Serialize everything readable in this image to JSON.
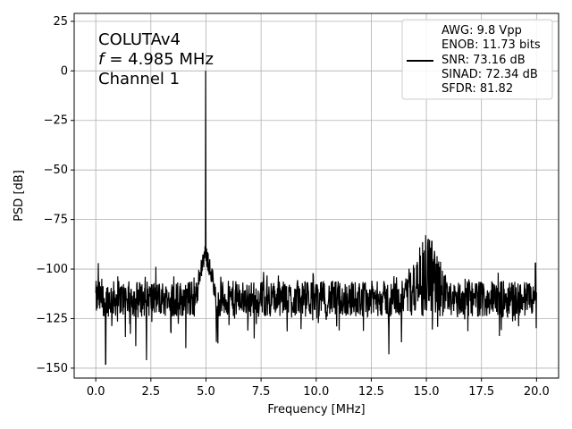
{
  "chart_data": {
    "type": "line",
    "xlabel": "Frequency [MHz]",
    "ylabel": "PSD [dB]",
    "xlim": [
      -0.98,
      21.0
    ],
    "ylim": [
      -155,
      29
    ],
    "xticks": [
      0.0,
      2.5,
      5.0,
      7.5,
      10.0,
      12.5,
      15.0,
      17.5,
      20.0
    ],
    "xtick_labels": [
      "0.0",
      "2.5",
      "5.0",
      "7.5",
      "10.0",
      "12.5",
      "15.0",
      "17.5",
      "20.0"
    ],
    "yticks": [
      25,
      0,
      -25,
      -50,
      -75,
      -100,
      -125,
      -150
    ],
    "ytick_labels": [
      "25",
      "0",
      "−25",
      "−50",
      "−75",
      "−100",
      "−125",
      "−150"
    ],
    "grid": true,
    "annotation_lines": [
      "COLUTAv4",
      "= 4.985 MHz",
      "Channel 1"
    ],
    "annotation_italic_prefix": "f",
    "legend": {
      "placement": "top-right",
      "lines": [
        "AWG: 9.8 Vpp",
        "ENOB: 11.73 bits",
        "SNR: 73.16 dB",
        "SINAD: 72.34 dB",
        "SFDR: 81.82"
      ]
    },
    "series": [
      {
        "color": "#000000",
        "peaks": [
          {
            "x": 4.985,
            "y": 0
          },
          {
            "x": 0.12,
            "y": -97
          },
          {
            "x": 14.97,
            "y": -83
          },
          {
            "x": 15.25,
            "y": -86
          },
          {
            "x": 14.7,
            "y": -89
          },
          {
            "x": 19.95,
            "y": -97
          }
        ],
        "noise_floor": -115,
        "noise_band": [
          -108,
          -122
        ],
        "min_dips": [
          {
            "x": 0.45,
            "y": -148
          },
          {
            "x": 2.3,
            "y": -146
          },
          {
            "x": 13.3,
            "y": -143
          }
        ]
      }
    ]
  }
}
